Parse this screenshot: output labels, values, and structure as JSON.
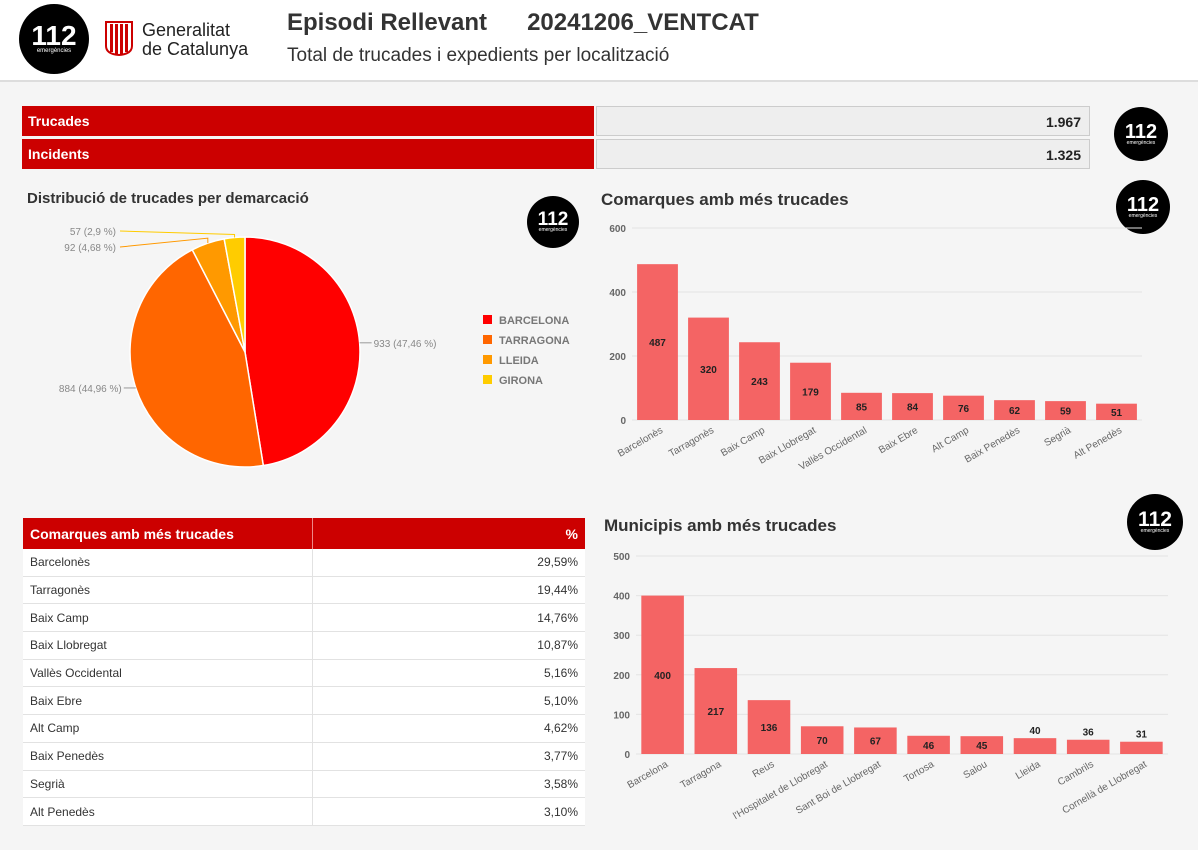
{
  "header": {
    "logo_number": "112",
    "logo_subtext": "emergències",
    "gov_line1": "Generalitat",
    "gov_line2": "de Catalunya",
    "title": "Episodi Rellevant",
    "episode_code": "20241206_VENTCAT",
    "subtitle": "Total de trucades i expedients per localització"
  },
  "kpis": [
    {
      "label": "Trucades",
      "value": "1.967"
    },
    {
      "label": "Incidents",
      "value": "1.325"
    }
  ],
  "table": {
    "header_left": "Comarques amb més trucades",
    "header_right": "%",
    "rows": [
      {
        "name": "Barcelonès",
        "pct": "29,59%"
      },
      {
        "name": "Tarragonès",
        "pct": "19,44%"
      },
      {
        "name": "Baix Camp",
        "pct": "14,76%"
      },
      {
        "name": "Baix Llobregat",
        "pct": "10,87%"
      },
      {
        "name": "Vallès Occidental",
        "pct": "5,16%"
      },
      {
        "name": "Baix Ebre",
        "pct": "5,10%"
      },
      {
        "name": "Alt Camp",
        "pct": "4,62%"
      },
      {
        "name": "Baix Penedès",
        "pct": "3,77%"
      },
      {
        "name": "Segrià",
        "pct": "3,58%"
      },
      {
        "name": "Alt Penedès",
        "pct": "3,10%"
      }
    ]
  },
  "chart_data": [
    {
      "type": "pie",
      "title": "Distribució de trucades per demarcació",
      "categories": [
        "BARCELONA",
        "TARRAGONA",
        "LLEIDA",
        "GIRONA"
      ],
      "values": [
        933,
        884,
        92,
        57
      ],
      "labels": [
        "933 (47,46 %)",
        "884 (44,96 %)",
        "92 (4,68 %)",
        "57 (2,9 %)"
      ],
      "colors": [
        "#ff0000",
        "#ff6600",
        "#ff9900",
        "#ffcc00"
      ],
      "legend": "right"
    },
    {
      "type": "bar",
      "title": "Comarques amb més trucades",
      "categories": [
        "Barcelonès",
        "Tarragonès",
        "Baix Camp",
        "Baix Llobregat",
        "Vallès Occidental",
        "Baix Ebre",
        "Alt Camp",
        "Baix Penedès",
        "Segrià",
        "Alt Penedès"
      ],
      "values": [
        487,
        320,
        243,
        179,
        85,
        84,
        76,
        62,
        59,
        51
      ],
      "ylim": [
        0,
        600
      ],
      "yticks": [
        0,
        200,
        400,
        600
      ],
      "color": "#f46464",
      "xlabel": "",
      "ylabel": ""
    },
    {
      "type": "bar",
      "title": "Municipis amb més trucades",
      "categories": [
        "Barcelona",
        "Tarragona",
        "Reus",
        "l'Hospitalet de Llobregat",
        "Sant Boi de Llobregat",
        "Tortosa",
        "Salou",
        "Lleida",
        "Cambrils",
        "Cornellà de Llobregat"
      ],
      "values": [
        400,
        217,
        136,
        70,
        67,
        46,
        45,
        40,
        36,
        31
      ],
      "ylim": [
        0,
        500
      ],
      "yticks": [
        0,
        100,
        200,
        300,
        400,
        500
      ],
      "color": "#f46464",
      "xlabel": "",
      "ylabel": ""
    }
  ]
}
